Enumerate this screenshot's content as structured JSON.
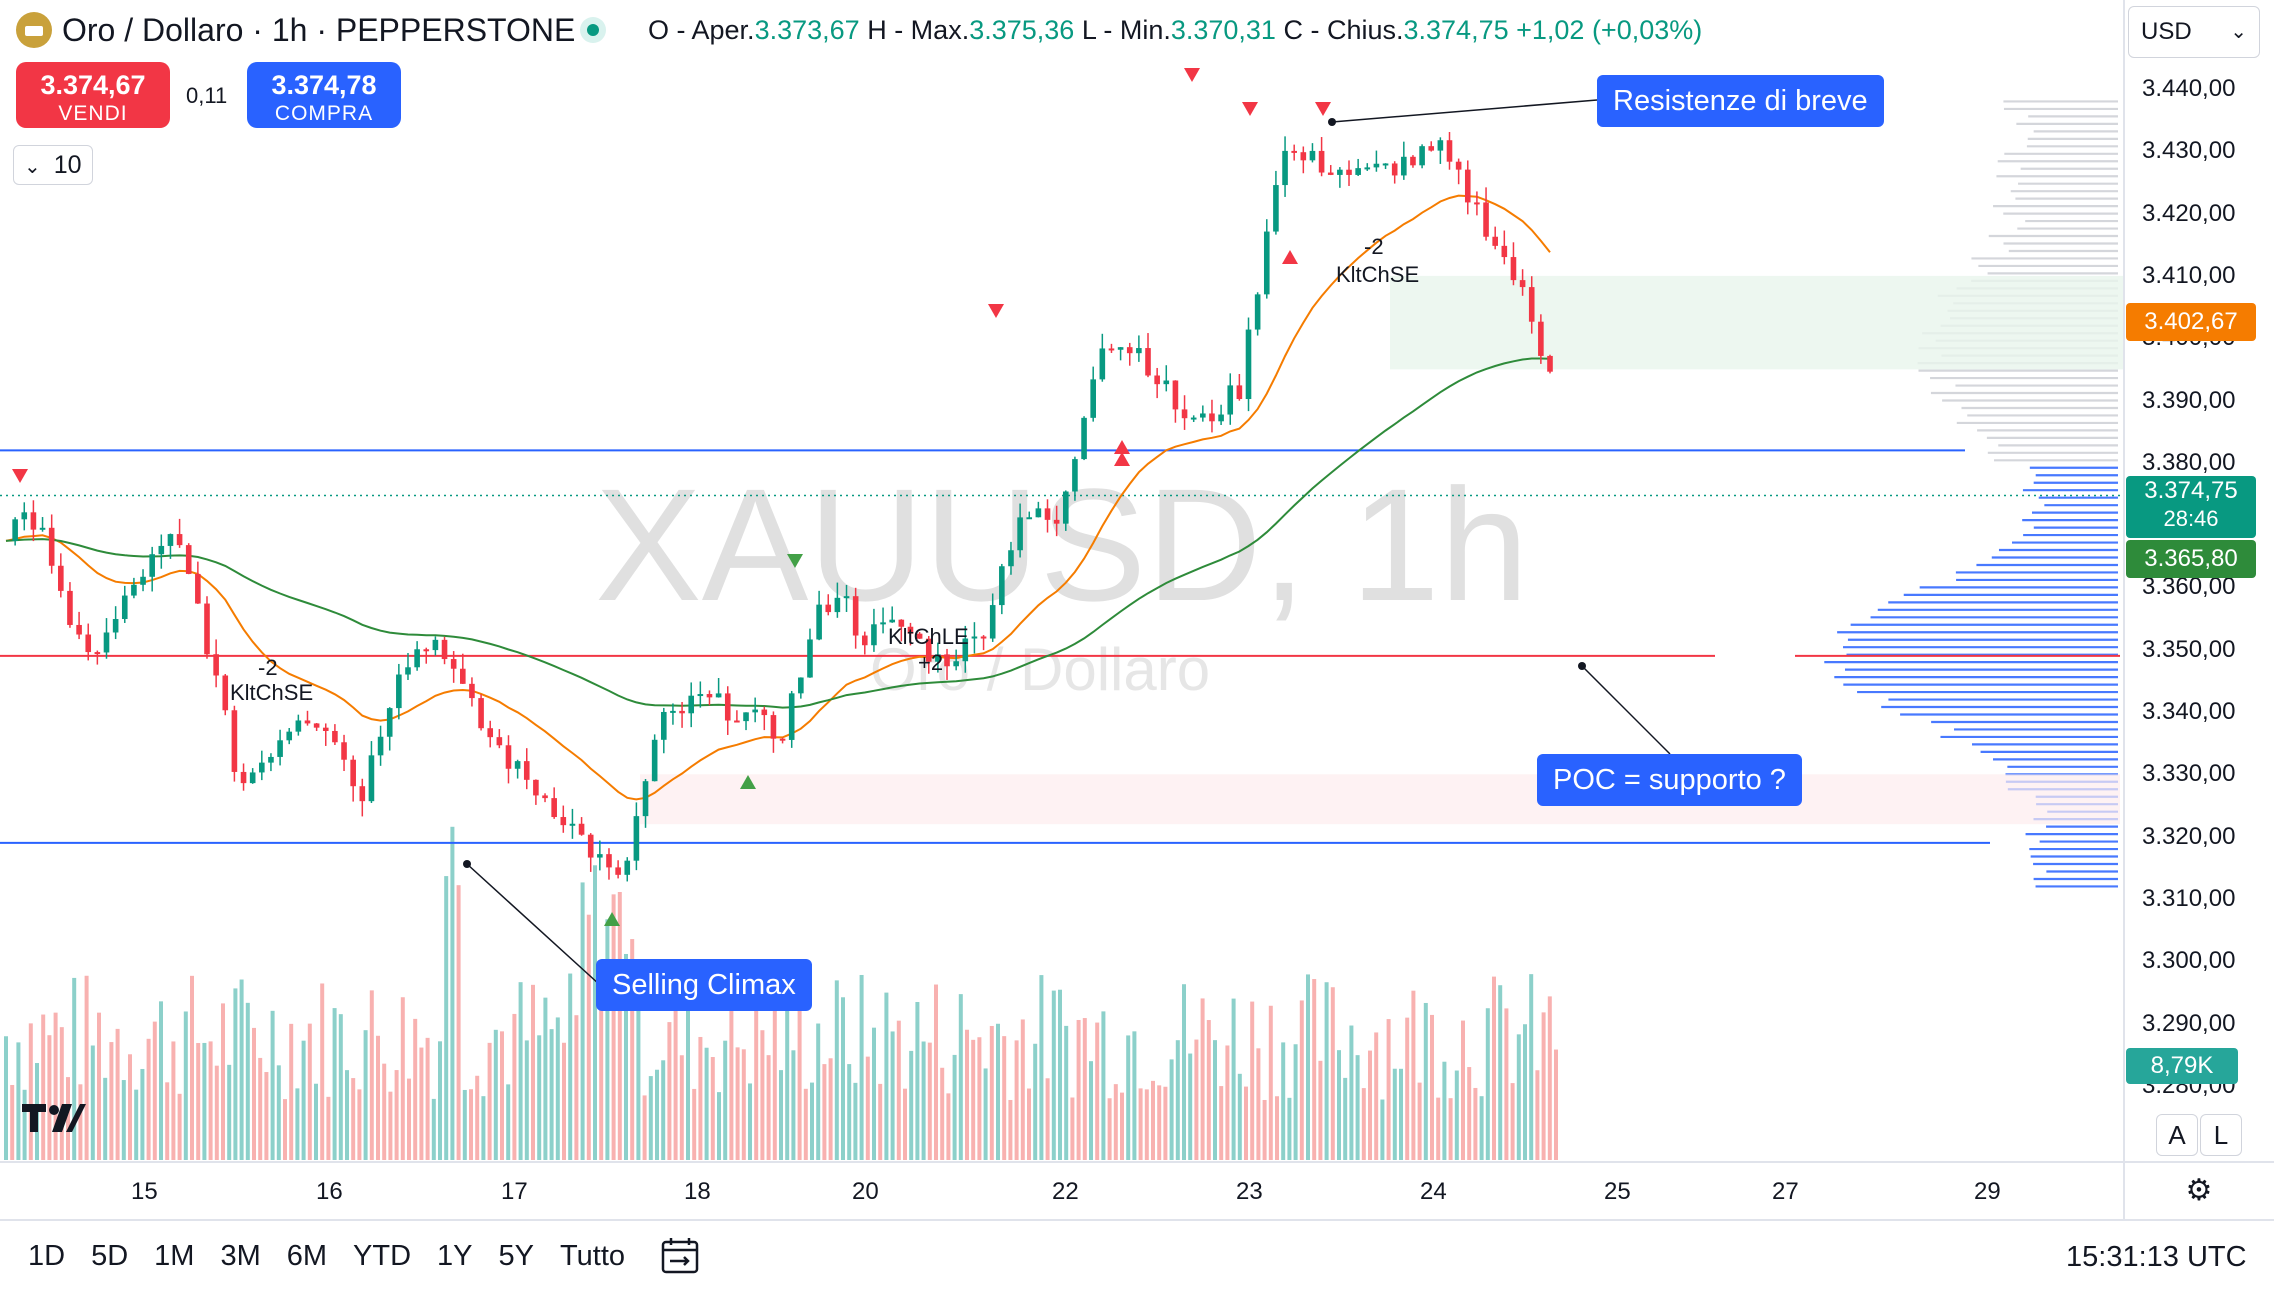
{
  "header": {
    "symbol_title": "Oro / Dollaro · 1h · PEPPERSTONE",
    "ohlc": [
      {
        "label": "O - Aper.",
        "value": "3.373,67"
      },
      {
        "label": "H - Max.",
        "value": "3.375,36"
      },
      {
        "label": "L - Min.",
        "value": "3.370,31"
      },
      {
        "label": "C - Chius.",
        "value": "3.374,75"
      }
    ],
    "change": "+1,02 (+0,03%)"
  },
  "trade": {
    "sell_price": "3.374,67",
    "sell_label": "VENDI",
    "spread": "0,11",
    "buy_price": "3.374,78",
    "buy_label": "COMPRA"
  },
  "indicator_toggle": "10",
  "currency": "USD",
  "price_axis": {
    "ticks": [
      "3.440,00",
      "3.430,00",
      "3.420,00",
      "3.410,00",
      "3.400,00",
      "3.390,00",
      "3.380,00",
      "3.360,00",
      "3.350,00",
      "3.340,00",
      "3.330,00",
      "3.320,00",
      "3.310,00",
      "3.300,00",
      "3.290,00",
      "3.280,00"
    ],
    "last_price": "3.374,75",
    "countdown": "28:46",
    "ema_fast_value": "3.402,67",
    "ema_slow_value": "3.365,80",
    "volume_value": "8,79K"
  },
  "time_axis": [
    "15",
    "16",
    "17",
    "18",
    "20",
    "22",
    "23",
    "24",
    "25",
    "27",
    "29"
  ],
  "watermark": {
    "symbol": "XAUUSD, 1h",
    "name": "Oro / Dollaro"
  },
  "annotations": {
    "resistance": "Resistenze di breve",
    "poc": "POC = supporto ?",
    "climax": "Selling Climax"
  },
  "signals": [
    {
      "text": "KltChSE",
      "count": "-2"
    },
    {
      "text": "KltChLE",
      "count": "+2"
    },
    {
      "text": "KltChSE",
      "count": "-2"
    }
  ],
  "timeframes": [
    "1D",
    "5D",
    "1M",
    "3M",
    "6M",
    "YTD",
    "1Y",
    "5Y",
    "Tutto"
  ],
  "clock": "15:31:13 UTC",
  "scale_buttons": [
    "A",
    "L"
  ],
  "colors": {
    "up": "#089981",
    "down": "#f23645",
    "ema_fast": "#f57c00",
    "ema_slow": "#2e8b3a",
    "accent": "#2962ff"
  },
  "chart_data": {
    "type": "candlestick",
    "title": "XAUUSD, 1h",
    "ylim": [
      3275,
      3450
    ],
    "x_ticks": [
      "15",
      "16",
      "17",
      "18",
      "20",
      "22",
      "23",
      "24",
      "25",
      "27",
      "29"
    ],
    "price_anchors": [
      {
        "day": "14",
        "price": 3372
      },
      {
        "day": "15",
        "price": 3352
      },
      {
        "day": "15",
        "price": 3368
      },
      {
        "day": "16",
        "price": 3325
      },
      {
        "day": "16",
        "price": 3340
      },
      {
        "day": "17",
        "price": 3325
      },
      {
        "day": "17",
        "price": 3352
      },
      {
        "day": "17",
        "price": 3312
      },
      {
        "day": "18",
        "price": 3340
      },
      {
        "day": "18",
        "price": 3333
      },
      {
        "day": "18",
        "price": 3358
      },
      {
        "day": "20",
        "price": 3350
      },
      {
        "day": "20",
        "price": 3370
      },
      {
        "day": "21",
        "price": 3400
      },
      {
        "day": "22",
        "price": 3387
      },
      {
        "day": "22",
        "price": 3392
      },
      {
        "day": "22",
        "price": 3432
      },
      {
        "day": "23",
        "price": 3425
      },
      {
        "day": "23",
        "price": 3433
      },
      {
        "day": "23",
        "price": 3408
      },
      {
        "day": "24",
        "price": 3385
      },
      {
        "day": "24",
        "price": 3355
      },
      {
        "day": "24",
        "price": 3375
      }
    ],
    "last_close": 3374.75,
    "ema_fast_last": 3402.67,
    "ema_slow_last": 3365.8,
    "horizontal_lines": [
      {
        "name": "resistance-line",
        "price": 3382
      },
      {
        "name": "poc-line",
        "price": 3349
      },
      {
        "name": "support-line",
        "price": 3319
      }
    ],
    "volume_last": "8,79K"
  }
}
